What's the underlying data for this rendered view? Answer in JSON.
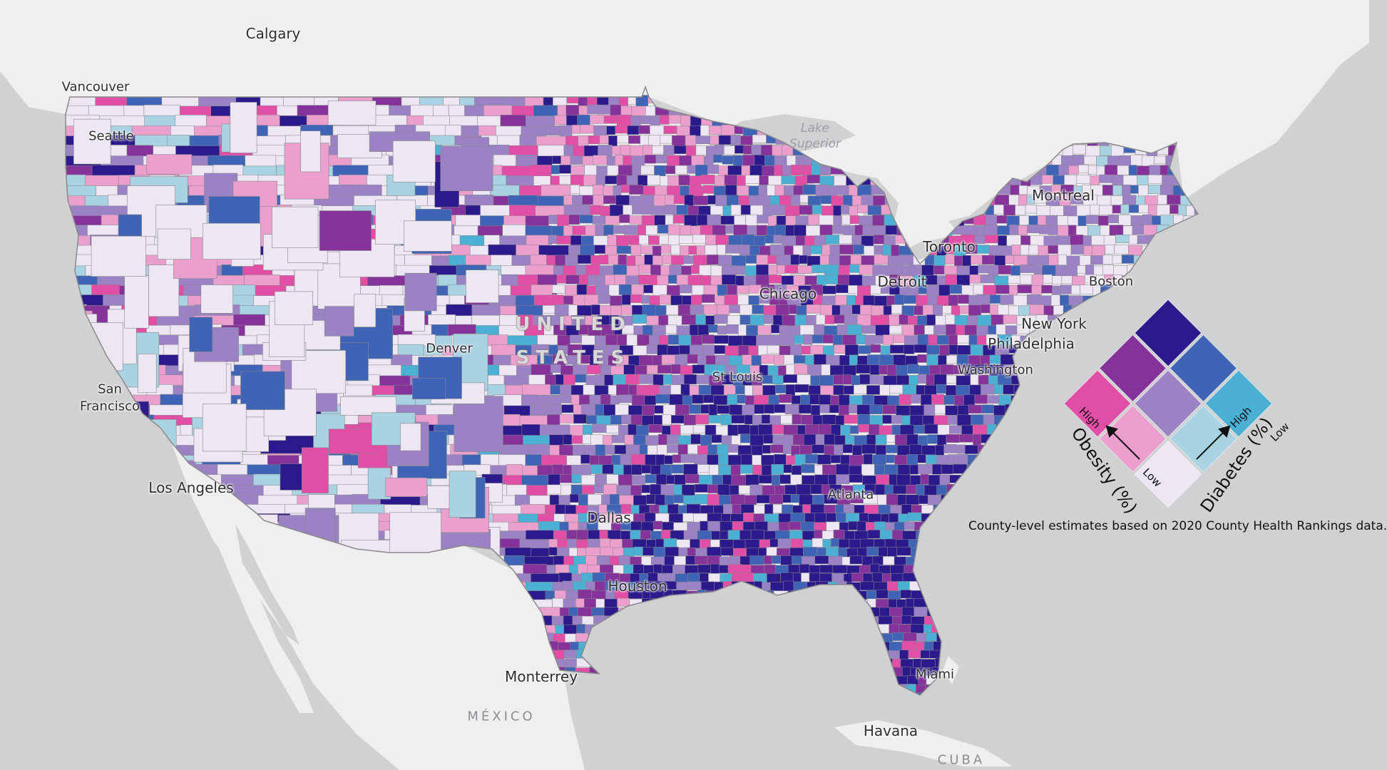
{
  "map": {
    "cities": [
      {
        "key": "calgary",
        "name": "Calgary"
      },
      {
        "key": "vancouver",
        "name": "Vancouver"
      },
      {
        "key": "seattle",
        "name": "Seattle"
      },
      {
        "key": "san_francisco_1",
        "name": "San"
      },
      {
        "key": "san_francisco_2",
        "name": "Francisco"
      },
      {
        "key": "los_angeles",
        "name": "Los Angeles"
      },
      {
        "key": "denver",
        "name": "Denver"
      },
      {
        "key": "dallas",
        "name": "Dallas"
      },
      {
        "key": "houston",
        "name": "Houston"
      },
      {
        "key": "monterrey",
        "name": "Monterrey"
      },
      {
        "key": "st_louis",
        "name": "St Louis"
      },
      {
        "key": "chicago",
        "name": "Chicago"
      },
      {
        "key": "detroit",
        "name": "Detroit"
      },
      {
        "key": "toronto",
        "name": "Toronto"
      },
      {
        "key": "montreal",
        "name": "Montreal"
      },
      {
        "key": "boston",
        "name": "Boston"
      },
      {
        "key": "new_york",
        "name": "New York"
      },
      {
        "key": "philadelphia",
        "name": "Philadelphia"
      },
      {
        "key": "washington",
        "name": "Washington"
      },
      {
        "key": "atlanta",
        "name": "Atlanta"
      },
      {
        "key": "miami",
        "name": "Miami"
      },
      {
        "key": "havana",
        "name": "Havana"
      }
    ],
    "water_labels": [
      "Lake",
      "Superior"
    ],
    "country_labels": {
      "us_line1": "UNITED",
      "us_line2": "STATES",
      "mexico": "MÉXICO",
      "cuba": "CUBA"
    }
  },
  "legend": {
    "x_axis_title": "Diabetes (%)",
    "y_axis_title": "Obesity (%)",
    "high": "High",
    "low": "Low",
    "colors": {
      "low_low": "#ece7f2",
      "low_mid": "#a9d2e3",
      "low_high": "#4bb0d4",
      "mid_low": "#ea9fcd",
      "mid_mid": "#9a82c5",
      "mid_high": "#3f63b5",
      "high_low": "#e04ea6",
      "high_mid": "#85339b",
      "high_high": "#2a1a8c"
    }
  },
  "footnote": "County-level estimates based on 2020 County Health Rankings data.",
  "base_colors": {
    "ocean": "#cfd1d3",
    "land": "#efefef",
    "border": "#7f7f7f"
  }
}
